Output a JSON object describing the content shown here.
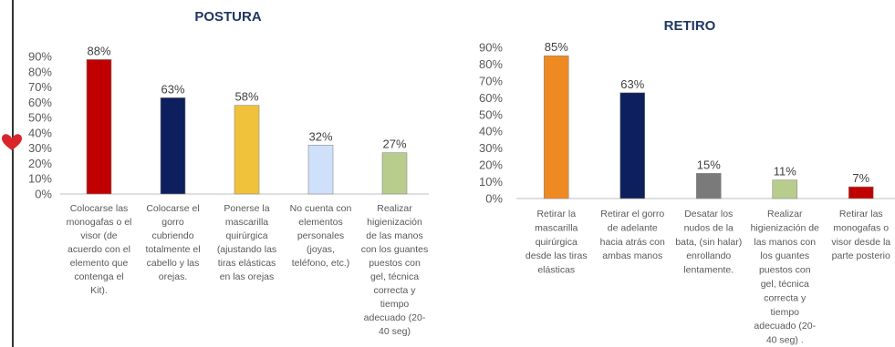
{
  "chart_data": [
    {
      "type": "bar",
      "title": "POSTURA",
      "categories": [
        [
          "Colocarse las",
          "monogafas o el",
          "visor (de",
          "acuerdo con el",
          "elemento que",
          "contenga el",
          "Kit)."
        ],
        [
          "Colocarse el",
          "gorro",
          "cubriendo",
          "totalmente el",
          "cabello y las",
          "orejas."
        ],
        [
          "Ponerse la",
          "mascarilla",
          "quirúrgica",
          "(ajustando las",
          "tiras elásticas",
          "en las orejas"
        ],
        [
          "No cuenta con",
          "elementos",
          "personales",
          "(joyas,",
          "teléfono, etc.)"
        ],
        [
          "Realizar",
          "higienización",
          "de las manos",
          "con los guantes",
          "puestos con",
          "gel, técnica",
          "correcta y",
          "tiempo",
          "adecuado (20-",
          "40 seg)"
        ]
      ],
      "values": [
        88,
        63,
        58,
        32,
        27
      ],
      "value_labels": [
        "88%",
        "63%",
        "58%",
        "32%",
        "27%"
      ],
      "colors": [
        "#c00000",
        "#0d1f5c",
        "#f0c13a",
        "#cfe0fb",
        "#b8cd8c"
      ],
      "ylim": [
        0,
        90
      ],
      "yticks": [
        "0%",
        "10%",
        "20%",
        "30%",
        "40%",
        "50%",
        "60%",
        "70%",
        "80%",
        "90%"
      ],
      "grid": false
    },
    {
      "type": "bar",
      "title": "RETIRO",
      "categories": [
        [
          "Retirar la",
          "mascarilla",
          "quirúrgica",
          "desde las tiras",
          "elásticas"
        ],
        [
          "Retirar el gorro",
          "de adelante",
          "hacia atrás con",
          "ambas manos"
        ],
        [
          "Desatar los",
          "nudos de la",
          "bata, (sin halar)",
          "enrollando",
          "lentamente."
        ],
        [
          "Realizar",
          "higienización de",
          "las manos con",
          "los guantes",
          "puestos con",
          "gel, técnica",
          "correcta y",
          "tiempo",
          "adecuado (20-",
          "40 seg) ."
        ],
        [
          "Retirar las",
          "monogafas o",
          "visor desde la",
          "parte posterio"
        ]
      ],
      "values": [
        85,
        63,
        15,
        11,
        7
      ],
      "value_labels": [
        "85%",
        "63%",
        "15%",
        "11%",
        "7%"
      ],
      "colors": [
        "#ef8a23",
        "#0d1f5c",
        "#7a7a7a",
        "#b8cd8c",
        "#c00000"
      ],
      "ylim": [
        0,
        90
      ],
      "yticks": [
        "0%",
        "10%",
        "20%",
        "30%",
        "40%",
        "50%",
        "60%",
        "70%",
        "80%",
        "90%"
      ],
      "grid": false
    }
  ],
  "decor": {
    "heart_color": "#d9252a",
    "border_color": "#333333"
  }
}
